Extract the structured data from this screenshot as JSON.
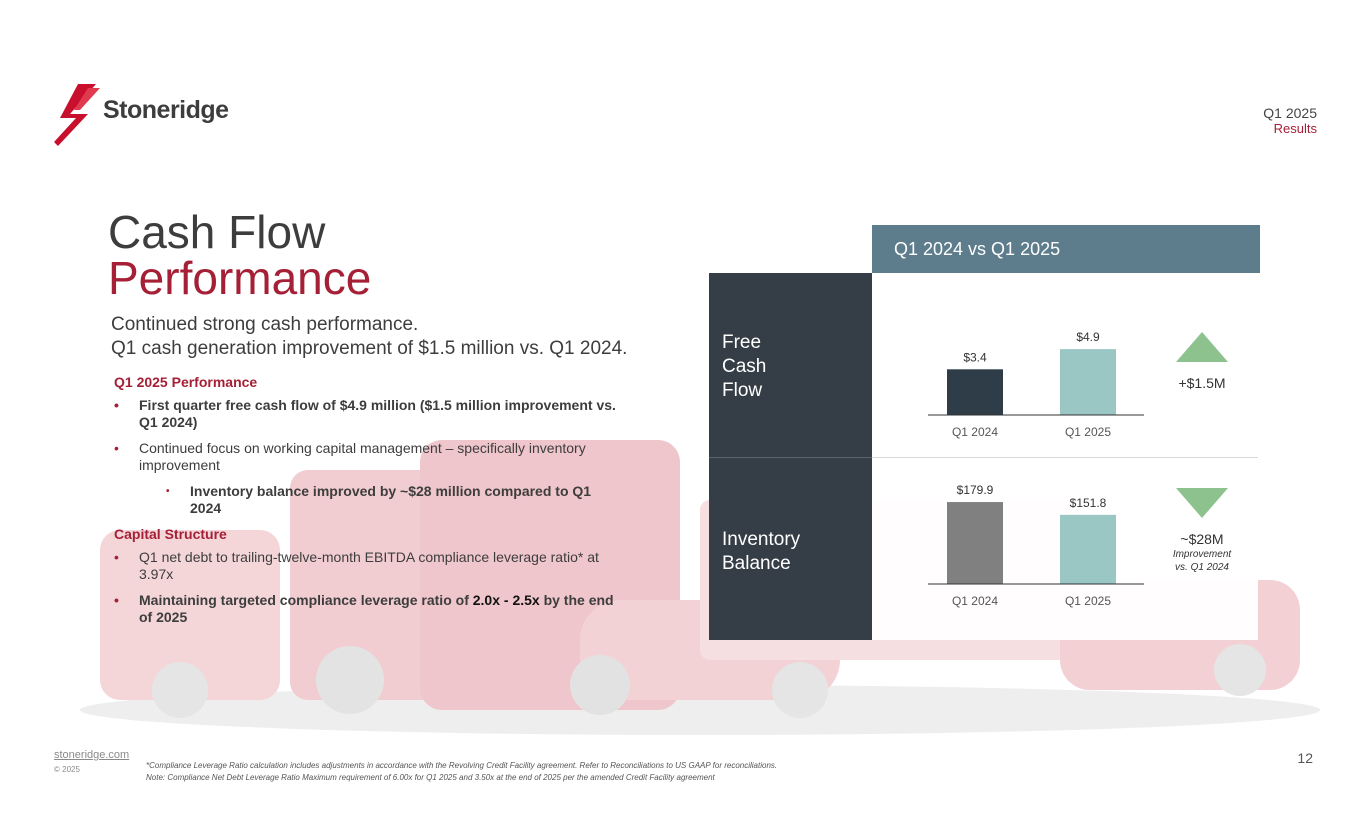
{
  "brand": {
    "name": "Stoneridge",
    "accent": "#a51f36",
    "dark_panel": "#353e46",
    "header_panel": "#5d7d8d"
  },
  "header": {
    "quarter": "Q1 2025",
    "results": "Results"
  },
  "title": {
    "line1": "Cash Flow",
    "line2": "Performance"
  },
  "subtitle": {
    "line1": "Continued strong cash performance.",
    "line2": "Q1 cash generation improvement of $1.5 million vs. Q1 2024."
  },
  "sections": {
    "performance": {
      "heading": "Q1 2025 Performance",
      "b1": "First quarter free cash flow of $4.9 million ($1.5 million improvement vs. Q1 2024)",
      "b2": "Continued focus on working capital management – specifically inventory improvement",
      "b3": "Inventory balance improved by ~$28 million compared to Q1 2024"
    },
    "capital": {
      "heading": "Capital Structure",
      "b1": "Q1 net debt to trailing-twelve-month EBITDA compliance leverage ratio* at 3.97x",
      "b2_pre": "Maintaining targeted compliance leverage ratio of ",
      "b2_mid": "2.0x - 2.5x",
      "b2_post": " by the end of 2025"
    }
  },
  "panel": {
    "header": "Q1 2024 vs Q1 2025",
    "row1_label_1": "Free",
    "row1_label_2": "Cash",
    "row1_label_3": "Flow",
    "row2_label_1": "Inventory",
    "row2_label_2": "Balance",
    "change1": "+$1.5M",
    "change2": "~$28M",
    "change2_note_1": "Improvement",
    "change2_note_2": "vs. Q1 2024",
    "up_icon": "triangle-up-icon",
    "down_icon": "triangle-down-icon"
  },
  "chart_data": [
    {
      "type": "bar",
      "categories": [
        "Q1 2024",
        "Q1 2025"
      ],
      "values": [
        3.4,
        4.9
      ],
      "data_labels": [
        "$3.4",
        "$4.9"
      ],
      "colors": [
        "#2e3d47",
        "#9ac6c4"
      ],
      "title": "",
      "ylim": [
        0,
        6.1
      ]
    },
    {
      "type": "bar",
      "categories": [
        "Q1 2024",
        "Q1 2025"
      ],
      "values": [
        179.9,
        151.8
      ],
      "data_labels": [
        "$179.9",
        "$151.8"
      ],
      "colors": [
        "#808080",
        "#9ac6c4"
      ],
      "title": "",
      "ylim": [
        0,
        180
      ]
    }
  ],
  "footer": {
    "site": "stoneridge.com",
    "copyright": "© 2025",
    "note1": "*Compliance Leverage Ratio calculation includes adjustments in accordance with the Revolving Credit Facility agreement. Refer to Reconciliations to US GAAP for reconciliations.",
    "note2": "Note: Compliance Net Debt Leverage Ratio Maximum requirement of 6.00x for Q1 2025 and 3.50x at the end of 2025 per the amended Credit Facility agreement",
    "page": "12"
  }
}
